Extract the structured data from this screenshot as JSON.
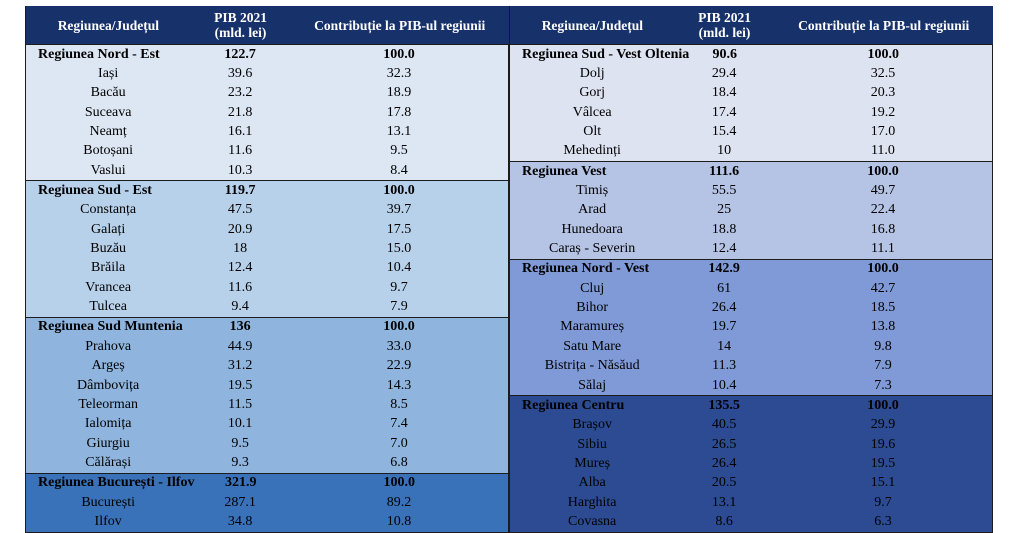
{
  "header": {
    "col1": "Regiunea/Județul",
    "col2_line1": "PIB 2021",
    "col2_line2": "(mld. lei)",
    "col3": "Contribuție la PIB-ul regiunii"
  },
  "left": [
    {
      "name": "Regiunea Nord - Est",
      "pib": "122.7",
      "pct": "100.0",
      "rows": [
        [
          "Iași",
          "39.6",
          "32.3"
        ],
        [
          "Bacău",
          "23.2",
          "18.9"
        ],
        [
          "Suceava",
          "21.8",
          "17.8"
        ],
        [
          "Neamț",
          "16.1",
          "13.1"
        ],
        [
          "Botoșani",
          "11.6",
          "9.5"
        ],
        [
          "Vaslui",
          "10.3",
          "8.4"
        ]
      ]
    },
    {
      "name": "Regiunea Sud - Est",
      "pib": "119.7",
      "pct": "100.0",
      "rows": [
        [
          "Constanța",
          "47.5",
          "39.7"
        ],
        [
          "Galați",
          "20.9",
          "17.5"
        ],
        [
          "Buzău",
          "18",
          "15.0"
        ],
        [
          "Brăila",
          "12.4",
          "10.4"
        ],
        [
          "Vrancea",
          "11.6",
          "9.7"
        ],
        [
          "Tulcea",
          "9.4",
          "7.9"
        ]
      ]
    },
    {
      "name": "Regiunea Sud Muntenia",
      "pib": "136",
      "pct": "100.0",
      "rows": [
        [
          "Prahova",
          "44.9",
          "33.0"
        ],
        [
          "Argeș",
          "31.2",
          "22.9"
        ],
        [
          "Dâmbovița",
          "19.5",
          "14.3"
        ],
        [
          "Teleorman",
          "11.5",
          "8.5"
        ],
        [
          "Ialomița",
          "10.1",
          "7.4"
        ],
        [
          "Giurgiu",
          "9.5",
          "7.0"
        ],
        [
          "Călărași",
          "9.3",
          "6.8"
        ]
      ]
    },
    {
      "name": "Regiunea București - Ilfov",
      "pib": "321.9",
      "pct": "100.0",
      "rows": [
        [
          "București",
          "287.1",
          "89.2"
        ],
        [
          "Ilfov",
          "34.8",
          "10.8"
        ]
      ]
    }
  ],
  "right": [
    {
      "name": "Regiunea Sud - Vest Oltenia",
      "pib": "90.6",
      "pct": "100.0",
      "rows": [
        [
          "Dolj",
          "29.4",
          "32.5"
        ],
        [
          "Gorj",
          "18.4",
          "20.3"
        ],
        [
          "Vâlcea",
          "17.4",
          "19.2"
        ],
        [
          "Olt",
          "15.4",
          "17.0"
        ],
        [
          "Mehedinți",
          "10",
          "11.0"
        ]
      ]
    },
    {
      "name": "Regiunea Vest",
      "pib": "111.6",
      "pct": "100.0",
      "rows": [
        [
          "Timiș",
          "55.5",
          "49.7"
        ],
        [
          "Arad",
          "25",
          "22.4"
        ],
        [
          "Hunedoara",
          "18.8",
          "16.8"
        ],
        [
          "Caraș - Severin",
          "12.4",
          "11.1"
        ]
      ]
    },
    {
      "name": "Regiunea Nord - Vest",
      "pib": "142.9",
      "pct": "100.0",
      "rows": [
        [
          "Cluj",
          "61",
          "42.7"
        ],
        [
          "Bihor",
          "26.4",
          "18.5"
        ],
        [
          "Maramureș",
          "19.7",
          "13.8"
        ],
        [
          "Satu Mare",
          "14",
          "9.8"
        ],
        [
          "Bistrița - Năsăud",
          "11.3",
          "7.9"
        ],
        [
          "Sălaj",
          "10.4",
          "7.3"
        ]
      ]
    },
    {
      "name": "Regiunea Centru",
      "pib": "135.5",
      "pct": "100.0",
      "rows": [
        [
          "Brașov",
          "40.5",
          "29.9"
        ],
        [
          "Sibiu",
          "26.5",
          "19.6"
        ],
        [
          "Mureș",
          "26.4",
          "19.5"
        ],
        [
          "Alba",
          "20.5",
          "15.1"
        ],
        [
          "Harghita",
          "13.1",
          "9.7"
        ],
        [
          "Covasna",
          "8.6",
          "6.3"
        ]
      ]
    }
  ],
  "colors": {
    "header": "#17316b",
    "left_bands": [
      "#dde7f4",
      "#b8d1ea",
      "#8fb5de",
      "#3a72b9"
    ],
    "right_bands": [
      "#dee3f1",
      "#b5c4e5",
      "#7f9ad6",
      "#2c4b93"
    ]
  }
}
